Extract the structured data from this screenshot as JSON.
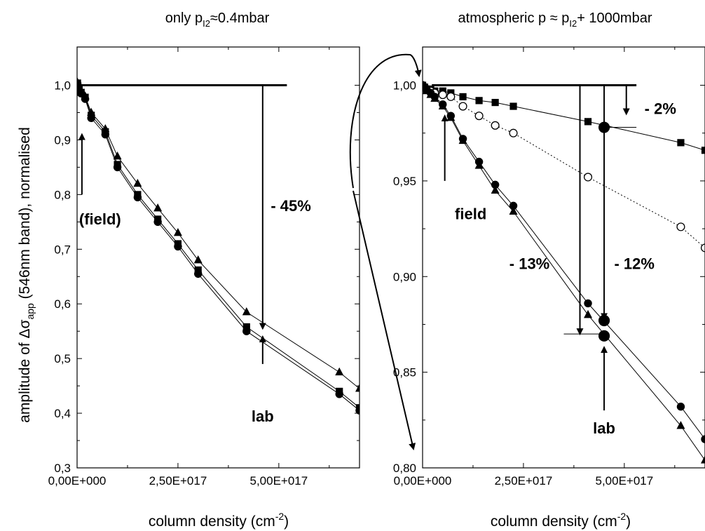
{
  "ylabel": {
    "main": "amplitude of Δσ",
    "sub": "app",
    "rest": " (546nm band), normalised"
  },
  "chart_data": [
    {
      "type": "line",
      "title": {
        "pre": "only p",
        "sub": "I2",
        "post": "≈0.4mbar"
      },
      "xlabel": {
        "main": "column density (cm",
        "sup": "-2",
        "close": ")"
      },
      "xlim": [
        0,
        7e+17
      ],
      "ylim": [
        0.3,
        1.07
      ],
      "xticks": [
        0,
        2.5e+17,
        5e+17
      ],
      "xtick_labels": [
        "0,00E+000",
        "2,50E+017",
        "5,00E+017"
      ],
      "yticks": [
        0.3,
        0.4,
        0.5,
        0.6,
        0.7,
        0.8,
        0.9,
        1.0
      ],
      "ytick_labels": [
        "0,3",
        "0,4",
        "0,5",
        "0,6",
        "0,7",
        "0,8",
        "0,9",
        "1,0"
      ],
      "series": [
        {
          "marker": "triangle",
          "line": "solid",
          "x": [
            0,
            1000000000000000.0,
            5000000000000000.0,
            1e+16,
            2e+16,
            3.5e+16,
            7e+16,
            1e+17,
            1.5e+17,
            2e+17,
            2.5e+17,
            3e+17,
            4.2e+17,
            6.5e+17,
            7e+17
          ],
          "y": [
            1.0,
            1.005,
            0.995,
            0.99,
            0.98,
            0.95,
            0.92,
            0.87,
            0.82,
            0.775,
            0.73,
            0.68,
            0.585,
            0.475,
            0.445
          ]
        },
        {
          "marker": "circle",
          "line": "solid",
          "x": [
            0,
            1000000000000000.0,
            5000000000000000.0,
            1e+16,
            2e+16,
            3.5e+16,
            7e+16,
            1e+17,
            1.5e+17,
            2e+17,
            2.5e+17,
            3e+17,
            4.2e+17,
            6.5e+17,
            7e+17
          ],
          "y": [
            1.0,
            1.003,
            0.99,
            0.985,
            0.975,
            0.94,
            0.91,
            0.85,
            0.795,
            0.75,
            0.705,
            0.655,
            0.55,
            0.435,
            0.405
          ]
        },
        {
          "marker": "square",
          "line": "solid",
          "x": [
            0,
            1000000000000000.0,
            5000000000000000.0,
            1e+16,
            2e+16,
            3.5e+16,
            7e+16,
            1e+17,
            1.5e+17,
            2e+17,
            2.5e+17,
            3e+17,
            4.2e+17,
            6.5e+17,
            7e+17
          ],
          "y": [
            1.0,
            1.004,
            0.993,
            0.987,
            0.978,
            0.945,
            0.915,
            0.855,
            0.8,
            0.755,
            0.71,
            0.662,
            0.558,
            0.44,
            0.41
          ]
        }
      ],
      "reference_line": {
        "y": 1.0,
        "x": [
          1000000000000000.0,
          5.2e+17
        ]
      },
      "annotations": [
        {
          "kind": "drop",
          "text": "- 45%",
          "x": 4.6e+17,
          "y_from": 1.0,
          "y_to": 0.555,
          "text_x": 4.8e+17,
          "text_y": 0.77
        },
        {
          "kind": "up",
          "text": "(field)",
          "x": 1.2e+16,
          "y_from": 0.8,
          "y_to": 0.91,
          "text_x": 5000000000000000.0,
          "text_y": 0.745
        },
        {
          "kind": "up",
          "text": "lab",
          "x": 4.6e+17,
          "y_from": 0.49,
          "y_to": 0.54,
          "text_x": 4.6e+17,
          "text_y": 0.385
        }
      ]
    },
    {
      "type": "line",
      "title": {
        "pre": "atmospheric  p ≈ p",
        "sub": "I2",
        "post": "+ 1000mbar"
      },
      "xlabel": {
        "main": "column density (cm",
        "sup": "-2",
        "close": ")"
      },
      "xlim": [
        0,
        7e+17
      ],
      "ylim": [
        0.8,
        1.02
      ],
      "xticks": [
        0,
        2.5e+17,
        5e+17
      ],
      "xtick_labels": [
        "0,00E+000",
        "2,50E+017",
        "5,00E+017"
      ],
      "yticks": [
        0.8,
        0.85,
        0.9,
        0.95,
        1.0
      ],
      "ytick_labels": [
        "0,80",
        "0,85",
        "0,90",
        "0,95",
        "1,00"
      ],
      "series": [
        {
          "marker": "square",
          "line": "solid",
          "x": [
            0,
            5000000000000000.0,
            1e+16,
            2e+16,
            3e+16,
            5e+16,
            7e+16,
            1e+17,
            1.4e+17,
            1.8e+17,
            2.25e+17,
            4.1e+17,
            6.4e+17,
            7e+17
          ],
          "y": [
            1.0,
            0.999,
            0.998,
            0.998,
            0.997,
            0.997,
            0.996,
            0.994,
            0.992,
            0.991,
            0.989,
            0.981,
            0.97,
            0.966
          ]
        },
        {
          "marker": "circle-open",
          "line": "dotted",
          "x": [
            0,
            5000000000000000.0,
            1e+16,
            2e+16,
            3e+16,
            5e+16,
            7e+16,
            1e+17,
            1.4e+17,
            1.8e+17,
            2.25e+17,
            4.1e+17,
            6.4e+17,
            7e+17
          ],
          "y": [
            1.0,
            0.999,
            0.998,
            0.997,
            0.996,
            0.995,
            0.994,
            0.989,
            0.984,
            0.979,
            0.975,
            0.952,
            0.926,
            0.915
          ]
        },
        {
          "marker": "circle",
          "line": "solid",
          "x": [
            0,
            5000000000000000.0,
            1e+16,
            2e+16,
            3e+16,
            5e+16,
            7e+16,
            1e+17,
            1.4e+17,
            1.8e+17,
            2.25e+17,
            4.1e+17,
            6.4e+17,
            7e+17
          ],
          "y": [
            1.0,
            0.999,
            0.998,
            0.996,
            0.994,
            0.99,
            0.984,
            0.972,
            0.96,
            0.948,
            0.937,
            0.886,
            0.832,
            0.815
          ]
        },
        {
          "marker": "triangle",
          "line": "solid",
          "x": [
            0,
            5000000000000000.0,
            1e+16,
            2e+16,
            3e+16,
            5e+16,
            7e+16,
            1e+17,
            1.4e+17,
            1.8e+17,
            2.25e+17,
            4.1e+17,
            6.4e+17,
            7e+17
          ],
          "y": [
            1.0,
            0.999,
            0.997,
            0.995,
            0.993,
            0.989,
            0.983,
            0.971,
            0.958,
            0.945,
            0.934,
            0.88,
            0.822,
            0.804
          ]
        }
      ],
      "large_points": [
        {
          "marker": "circle",
          "x": 4.5e+17,
          "y": 0.978
        },
        {
          "marker": "circle",
          "x": 4.5e+17,
          "y": 0.877
        },
        {
          "marker": "circle",
          "x": 4.5e+17,
          "y": 0.869
        }
      ],
      "reference_line": {
        "y": 1.0,
        "x": [
          2.3e+16,
          5.3e+17
        ]
      },
      "short_lines": [
        {
          "y": 0.978,
          "x": [
            4.6e+17,
            5.3e+17
          ]
        },
        {
          "y": 0.87,
          "x": [
            3.5e+17,
            4.5e+17
          ]
        }
      ],
      "annotations": [
        {
          "kind": "drop",
          "text": "- 2%",
          "x": 5.05e+17,
          "y_from": 1.0,
          "y_to": 0.985,
          "text_x": 5.5e+17,
          "text_y": 0.985
        },
        {
          "kind": "drop",
          "text": "- 13%",
          "x": 3.9e+17,
          "y_from": 1.0,
          "y_to": 0.87,
          "text_x": 2.15e+17,
          "text_y": 0.904
        },
        {
          "kind": "drop",
          "text": "- 12%",
          "x": 4.5e+17,
          "y_from": 1.0,
          "y_to": 0.878,
          "text_x": 4.75e+17,
          "text_y": 0.904
        },
        {
          "kind": "up",
          "text": "field",
          "x": 5.5e+16,
          "y_from": 0.95,
          "y_to": 0.984,
          "text_x": 8e+16,
          "text_y": 0.93
        },
        {
          "kind": "up",
          "text": "lab",
          "x": 4.5e+17,
          "y_from": 0.83,
          "y_to": 0.863,
          "text_x": 4.5e+17,
          "text_y": 0.818
        }
      ]
    }
  ]
}
